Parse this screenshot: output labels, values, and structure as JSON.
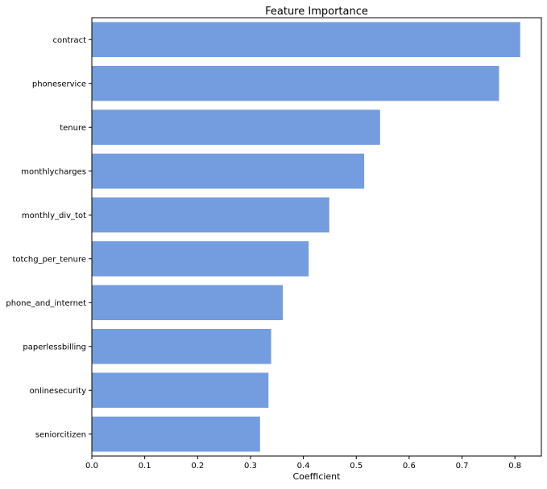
{
  "chart_data": {
    "type": "bar",
    "orientation": "horizontal",
    "title": "Feature Importance",
    "xlabel": "Coefficient",
    "ylabel": "",
    "xlim": [
      0,
      0.85
    ],
    "xticks": [
      "0.0",
      "0.1",
      "0.2",
      "0.3",
      "0.4",
      "0.5",
      "0.6",
      "0.7",
      "0.8"
    ],
    "xtick_values": [
      0,
      0.1,
      0.2,
      0.3,
      0.4,
      0.5,
      0.6,
      0.7,
      0.8
    ],
    "categories": [
      "contract",
      "phoneservice",
      "tenure",
      "monthlycharges",
      "monthly_div_tot",
      "totchg_per_tenure",
      "phone_and_internet",
      "paperlessbilling",
      "onlinesecurity",
      "seniorcitizen"
    ],
    "values": [
      0.81,
      0.77,
      0.545,
      0.515,
      0.449,
      0.41,
      0.361,
      0.339,
      0.334,
      0.318
    ],
    "bar_color": "#739ddf",
    "grid": false,
    "legend": "none"
  }
}
